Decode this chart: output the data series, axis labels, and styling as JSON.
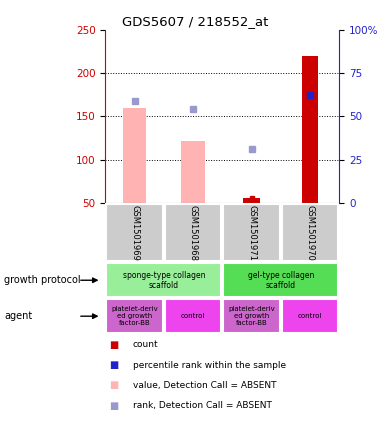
{
  "title": "GDS5607 / 218552_at",
  "samples": [
    "GSM1501969",
    "GSM1501968",
    "GSM1501971",
    "GSM1501970"
  ],
  "bar_values_pink": [
    160,
    122,
    0,
    0
  ],
  "bar_values_red": [
    0,
    0,
    56,
    220
  ],
  "rank_dots_blue_dark": [
    null,
    null,
    null,
    175
  ],
  "rank_dots_blue_light": [
    168,
    158,
    112,
    null
  ],
  "count_dot_red": [
    null,
    null,
    56,
    null
  ],
  "ylim_left": [
    50,
    250
  ],
  "ylim_right": [
    0,
    100
  ],
  "yticks_left": [
    50,
    100,
    150,
    200,
    250
  ],
  "yticks_right": [
    0,
    25,
    50,
    75,
    100
  ],
  "pink_bar_color": "#ffb3b3",
  "red_bar_color": "#cc0000",
  "blue_dark_color": "#2222cc",
  "blue_light_color": "#9999cc",
  "left_axis_color": "#cc0000",
  "right_axis_color": "#2222cc",
  "sample_bg_color": "#cccccc",
  "gp_color1": "#99ee99",
  "gp_color2": "#55dd55",
  "agent_color1": "#cc66cc",
  "agent_color2": "#ee44ee",
  "legend_colors": [
    "#cc0000",
    "#2222cc",
    "#ffb3b3",
    "#9999cc"
  ],
  "legend_labels": [
    "count",
    "percentile rank within the sample",
    "value, Detection Call = ABSENT",
    "rank, Detection Call = ABSENT"
  ],
  "gridline_ticks": [
    100,
    150,
    200
  ],
  "bar_width": 0.4
}
